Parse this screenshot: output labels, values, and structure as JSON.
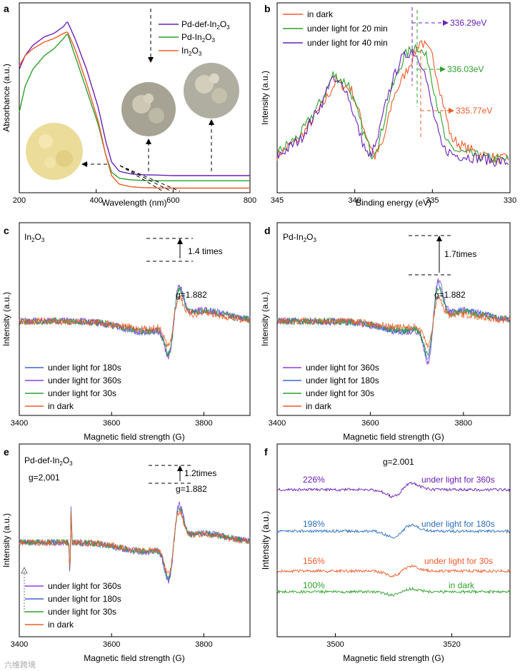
{
  "chart_data": [
    {
      "panel": "a",
      "type": "line",
      "xlabel": "Wavelength (nm)",
      "ylabel": "Absorbance (a.u.)",
      "xlim": [
        200,
        800
      ],
      "xticks": [
        200,
        400,
        600,
        800
      ],
      "legend": "top-right",
      "series": [
        {
          "name": "Pd-def-In2O3",
          "color": "#6a1fb8",
          "x": [
            200,
            215,
            235,
            265,
            290,
            315,
            325,
            345,
            375,
            405,
            425,
            440,
            460,
            490,
            520,
            560,
            600,
            650,
            700,
            800
          ],
          "y": [
            0.72,
            0.8,
            0.86,
            0.91,
            0.93,
            0.97,
            1.0,
            0.9,
            0.72,
            0.5,
            0.3,
            0.18,
            0.125,
            0.11,
            0.105,
            0.103,
            0.1,
            0.1,
            0.1,
            0.1
          ]
        },
        {
          "name": "Pd-In2O3",
          "color": "#2ca02c",
          "x": [
            200,
            215,
            235,
            265,
            290,
            315,
            325,
            345,
            375,
            405,
            425,
            440,
            460,
            490,
            520,
            560,
            600,
            650,
            700,
            800
          ],
          "y": [
            0.47,
            0.62,
            0.72,
            0.8,
            0.84,
            0.9,
            0.93,
            0.8,
            0.6,
            0.4,
            0.22,
            0.12,
            0.085,
            0.075,
            0.072,
            0.07,
            0.07,
            0.07,
            0.07,
            0.07
          ]
        },
        {
          "name": "In2O3",
          "color": "#f05a28",
          "x": [
            200,
            215,
            235,
            265,
            290,
            315,
            325,
            345,
            375,
            405,
            425,
            440,
            460,
            490,
            520,
            560,
            600,
            650,
            700,
            800
          ],
          "y": [
            0.74,
            0.8,
            0.84,
            0.88,
            0.9,
            0.93,
            0.94,
            0.84,
            0.64,
            0.42,
            0.22,
            0.1,
            0.05,
            0.035,
            0.03,
            0.028,
            0.027,
            0.027,
            0.027,
            0.027
          ]
        }
      ]
    },
    {
      "panel": "b",
      "type": "line",
      "xlabel": "Binding energy (eV)",
      "ylabel": "Intensity (a.u.)",
      "xlim": [
        345,
        330
      ],
      "xticks": [
        345,
        340,
        335,
        330
      ],
      "legend": "top-left",
      "annotations": [
        {
          "text": "336.29eV",
          "x": 336.29,
          "color": "#6a1fb8"
        },
        {
          "text": "336.03eV",
          "x": 336.03,
          "color": "#2ca02c"
        },
        {
          "text": "335.77eV",
          "x": 335.77,
          "color": "#f05a28"
        }
      ],
      "series": [
        {
          "name": "in dark",
          "color": "#f05a28",
          "x": [
            345,
            343.5,
            342,
            341.2,
            340.2,
            339.2,
            338.7,
            338.2,
            337.5,
            336.5,
            335.77,
            335,
            334.4,
            333.8,
            333,
            332,
            331,
            330
          ],
          "y": [
            0.15,
            0.26,
            0.48,
            0.62,
            0.56,
            0.26,
            0.14,
            0.22,
            0.52,
            0.72,
            0.88,
            0.78,
            0.52,
            0.26,
            0.2,
            0.16,
            0.13,
            0.12
          ]
        },
        {
          "name": "under light for 20 min",
          "color": "#2ca02c",
          "x": [
            345,
            343.5,
            342,
            341.4,
            340.4,
            339.4,
            338.9,
            338.4,
            337.7,
            336.8,
            336.03,
            335.3,
            334.7,
            334.1,
            333.3,
            332,
            331,
            330
          ],
          "y": [
            0.16,
            0.28,
            0.52,
            0.66,
            0.6,
            0.28,
            0.15,
            0.24,
            0.55,
            0.78,
            0.85,
            0.76,
            0.48,
            0.22,
            0.17,
            0.14,
            0.12,
            0.12
          ]
        },
        {
          "name": "under light for 40 min",
          "color": "#6a1fb8",
          "x": [
            345,
            343.5,
            342,
            341.6,
            340.6,
            339.6,
            339.1,
            338.6,
            337.9,
            337.1,
            336.29,
            335.6,
            335,
            334.4,
            333.6,
            332,
            331,
            330
          ],
          "y": [
            0.14,
            0.25,
            0.5,
            0.63,
            0.58,
            0.26,
            0.13,
            0.22,
            0.52,
            0.75,
            0.82,
            0.72,
            0.44,
            0.2,
            0.15,
            0.13,
            0.11,
            0.1
          ]
        }
      ]
    },
    {
      "panel": "c",
      "type": "line",
      "title": "In2O3",
      "xlabel": "Magnetic field strength (G)",
      "ylabel": "Intensity (a.u.)",
      "xlim": [
        3400,
        3900
      ],
      "xticks": [
        3400,
        3600,
        3800
      ],
      "legend": "bottom-left",
      "annotations": [
        {
          "text": "1.4 times"
        },
        {
          "text": "g=1.882"
        }
      ],
      "series": [
        {
          "name": "under light for 180s",
          "color": "#3a66d6",
          "amp": 1.0
        },
        {
          "name": "under light for 360s",
          "color": "#8b3fe0",
          "amp": 1.02
        },
        {
          "name": "under light for 30s",
          "color": "#2ca02c",
          "amp": 0.93
        },
        {
          "name": "in dark",
          "color": "#f05a28",
          "amp": 0.72
        }
      ]
    },
    {
      "panel": "d",
      "type": "line",
      "title": "Pd-In2O3",
      "xlabel": "Magnetic field strength (G)",
      "ylabel": "Intensity (a.u.)",
      "xlim": [
        3400,
        3900
      ],
      "xticks": [
        3400,
        3600,
        3800
      ],
      "legend": "bottom-left",
      "annotations": [
        {
          "text": "1.7times"
        },
        {
          "text": "g=1.882"
        }
      ],
      "series": [
        {
          "name": "under light for 360s",
          "color": "#8b3fe0",
          "amp": 1.0
        },
        {
          "name": "under light for 180s",
          "color": "#3a66d6",
          "amp": 0.93
        },
        {
          "name": "under light for 30s",
          "color": "#2ca02c",
          "amp": 0.82
        },
        {
          "name": "in dark",
          "color": "#f05a28",
          "amp": 0.59
        }
      ]
    },
    {
      "panel": "e",
      "type": "line",
      "title": "Pd-def-In2O3",
      "xlabel": "Magnetic field strength (G)",
      "ylabel": "Intensity (a.u.)",
      "xlim": [
        3400,
        3900
      ],
      "xticks": [
        3400,
        3600,
        3800
      ],
      "legend": "bottom-left",
      "annotations": [
        {
          "text": "1.2times"
        },
        {
          "text": "g=1.882"
        },
        {
          "text": "g=2,001"
        }
      ],
      "series": [
        {
          "name": "under light for 360s",
          "color": "#8b3fe0",
          "amp": 1.0
        },
        {
          "name": "under light for 180s",
          "color": "#3a66d6",
          "amp": 0.96
        },
        {
          "name": "under light for 30s",
          "color": "#2ca02c",
          "amp": 0.9
        },
        {
          "name": "in dark",
          "color": "#f05a28",
          "amp": 0.83
        }
      ]
    },
    {
      "panel": "f",
      "type": "line",
      "xlabel": "Magnetic field strength (G)",
      "ylabel": "Intensity (a.u.)",
      "xlim": [
        3490,
        3530
      ],
      "xticks": [
        3500,
        3520
      ],
      "annotations": [
        {
          "text": "g=2.001"
        }
      ],
      "series": [
        {
          "name": "under light for 360s",
          "pct": "226%",
          "color": "#6a1fb8",
          "amp": 2.26
        },
        {
          "name": "under light for 180s",
          "pct": "198%",
          "color": "#2a6fc0",
          "amp": 1.98
        },
        {
          "name": "under light for 30s",
          "pct": "156%",
          "color": "#f05a28",
          "amp": 1.56
        },
        {
          "name": "in dark",
          "pct": "100%",
          "color": "#2ca02c",
          "amp": 1.0
        }
      ]
    }
  ],
  "labels": {
    "a": "a",
    "b": "b",
    "c": "c",
    "d": "d",
    "e": "e",
    "f": "f",
    "watermark": "六维跨境"
  },
  "legend_a": [
    "Pd-def-In",
    "2",
    "O",
    "3",
    "Pd-In",
    "2",
    "O",
    "3",
    "In",
    "2",
    "O",
    "3"
  ]
}
